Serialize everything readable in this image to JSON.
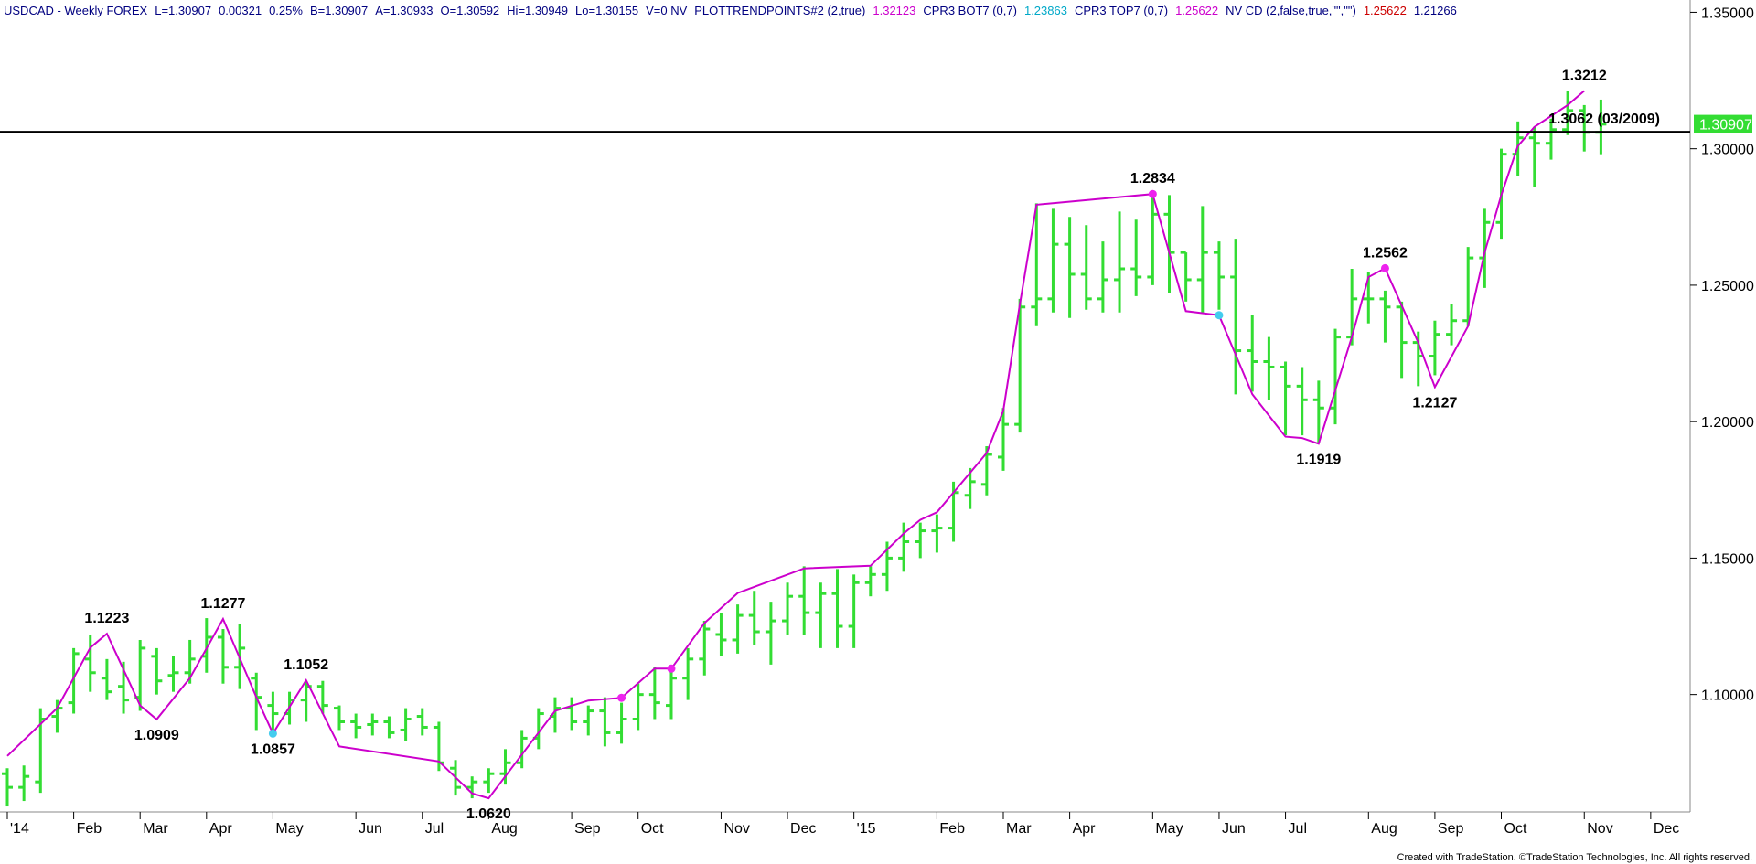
{
  "header": {
    "items": [
      {
        "text": "USDCAD - Weekly  FOREX",
        "color": "#000080"
      },
      {
        "text": "L=1.30907",
        "color": "#000080"
      },
      {
        "text": "0.00321",
        "color": "#000080"
      },
      {
        "text": "0.25%",
        "color": "#000080"
      },
      {
        "text": "B=1.30907",
        "color": "#000080"
      },
      {
        "text": "A=1.30933",
        "color": "#000080"
      },
      {
        "text": "O=1.30592",
        "color": "#000080"
      },
      {
        "text": "Hi=1.30949",
        "color": "#000080"
      },
      {
        "text": "Lo=1.30155",
        "color": "#000080"
      },
      {
        "text": "V=0  NV",
        "color": "#000080"
      },
      {
        "text": "PLOTTRENDPOINTS#2 (2,true)",
        "color": "#000080"
      },
      {
        "text": "1.32123",
        "color": "#cc00cc"
      },
      {
        "text": "CPR3 BOT7 (0,7)",
        "color": "#000080"
      },
      {
        "text": "1.23863",
        "color": "#00a8c8"
      },
      {
        "text": "CPR3 TOP7 (0,7)",
        "color": "#000080"
      },
      {
        "text": "1.25622",
        "color": "#cc00cc"
      },
      {
        "text": "NV CD (2,false,true,\"\",\"\")",
        "color": "#000080"
      },
      {
        "text": "1.25622",
        "color": "#cc0000"
      },
      {
        "text": "1.21266",
        "color": "#000080"
      }
    ]
  },
  "footer": {
    "credit": "Created with TradeStation. ©TradeStation Technologies, Inc. All rights reserved."
  },
  "chart_data": {
    "type": "ohlc",
    "symbol": "USDCAD",
    "timeframe": "Weekly",
    "ylim": [
      1.057,
      1.3545
    ],
    "y_ticks": [
      "1.35000",
      "1.30000",
      "1.25000",
      "1.20000",
      "1.15000",
      "1.10000"
    ],
    "y_tick_values": [
      1.35,
      1.3,
      1.25,
      1.2,
      1.15,
      1.1
    ],
    "x_ticks": [
      "'14",
      "Feb",
      "Mar",
      "Apr",
      "May",
      "Jun",
      "Jul",
      "Aug",
      "Sep",
      "Oct",
      "Nov",
      "Dec",
      "'15",
      "Feb",
      "Mar",
      "Apr",
      "May",
      "Jun",
      "Jul",
      "Aug",
      "Sep",
      "Oct",
      "Nov",
      "Dec"
    ],
    "x_tick_weeks": [
      0,
      4,
      8,
      12,
      16,
      21,
      25,
      29,
      34,
      38,
      43,
      47,
      51,
      56,
      60,
      64,
      69,
      73,
      77,
      82,
      86,
      90,
      95,
      99
    ],
    "last_price": "1.30907",
    "last_price_value": 1.30907,
    "bar_color": "#33dd33",
    "trend_color": "#cc00cc",
    "bars": [
      [
        1.071,
        1.073,
        1.059,
        1.066
      ],
      [
        1.066,
        1.074,
        1.061,
        1.07
      ],
      [
        1.068,
        1.095,
        1.064,
        1.091
      ],
      [
        1.092,
        1.098,
        1.086,
        1.095
      ],
      [
        1.097,
        1.117,
        1.093,
        1.115
      ],
      [
        1.113,
        1.122,
        1.101,
        1.108
      ],
      [
        1.106,
        1.113,
        1.098,
        1.101
      ],
      [
        1.103,
        1.112,
        1.093,
        1.098
      ],
      [
        1.099,
        1.12,
        1.094,
        1.117
      ],
      [
        1.114,
        1.117,
        1.1,
        1.105
      ],
      [
        1.107,
        1.114,
        1.101,
        1.108
      ],
      [
        1.108,
        1.12,
        1.104,
        1.113
      ],
      [
        1.114,
        1.128,
        1.108,
        1.121
      ],
      [
        1.121,
        1.124,
        1.104,
        1.11
      ],
      [
        1.11,
        1.126,
        1.102,
        1.117
      ],
      [
        1.106,
        1.108,
        1.087,
        1.099
      ],
      [
        1.096,
        1.101,
        1.086,
        1.093
      ],
      [
        1.093,
        1.101,
        1.089,
        1.098
      ],
      [
        1.098,
        1.105,
        1.09,
        1.103
      ],
      [
        1.103,
        1.105,
        1.093,
        1.096
      ],
      [
        1.095,
        1.096,
        1.087,
        1.09
      ],
      [
        1.09,
        1.093,
        1.084,
        1.088
      ],
      [
        1.089,
        1.093,
        1.085,
        1.09
      ],
      [
        1.09,
        1.092,
        1.084,
        1.086
      ],
      [
        1.087,
        1.095,
        1.083,
        1.091
      ],
      [
        1.092,
        1.095,
        1.085,
        1.088
      ],
      [
        1.088,
        1.09,
        1.072,
        1.075
      ],
      [
        1.073,
        1.076,
        1.063,
        1.066
      ],
      [
        1.066,
        1.07,
        1.062,
        1.068
      ],
      [
        1.068,
        1.073,
        1.064,
        1.071
      ],
      [
        1.071,
        1.08,
        1.067,
        1.075
      ],
      [
        1.075,
        1.087,
        1.073,
        1.084
      ],
      [
        1.084,
        1.095,
        1.08,
        1.093
      ],
      [
        1.092,
        1.099,
        1.086,
        1.095
      ],
      [
        1.095,
        1.099,
        1.087,
        1.09
      ],
      [
        1.09,
        1.096,
        1.085,
        1.094
      ],
      [
        1.094,
        1.099,
        1.081,
        1.086
      ],
      [
        1.086,
        1.097,
        1.082,
        1.091
      ],
      [
        1.091,
        1.104,
        1.087,
        1.1
      ],
      [
        1.1,
        1.11,
        1.091,
        1.097
      ],
      [
        1.096,
        1.11,
        1.091,
        1.106
      ],
      [
        1.106,
        1.117,
        1.098,
        1.113
      ],
      [
        1.113,
        1.127,
        1.107,
        1.124
      ],
      [
        1.122,
        1.13,
        1.114,
        1.12
      ],
      [
        1.12,
        1.133,
        1.115,
        1.129
      ],
      [
        1.129,
        1.138,
        1.118,
        1.123
      ],
      [
        1.123,
        1.134,
        1.111,
        1.127
      ],
      [
        1.127,
        1.141,
        1.122,
        1.136
      ],
      [
        1.136,
        1.147,
        1.122,
        1.13
      ],
      [
        1.13,
        1.141,
        1.117,
        1.137
      ],
      [
        1.137,
        1.146,
        1.117,
        1.125
      ],
      [
        1.125,
        1.144,
        1.117,
        1.141
      ],
      [
        1.141,
        1.147,
        1.136,
        1.144
      ],
      [
        1.144,
        1.156,
        1.138,
        1.15
      ],
      [
        1.15,
        1.163,
        1.145,
        1.156
      ],
      [
        1.156,
        1.163,
        1.15,
        1.16
      ],
      [
        1.16,
        1.166,
        1.152,
        1.161
      ],
      [
        1.161,
        1.178,
        1.156,
        1.174
      ],
      [
        1.173,
        1.183,
        1.168,
        1.178
      ],
      [
        1.177,
        1.191,
        1.173,
        1.188
      ],
      [
        1.187,
        1.205,
        1.182,
        1.199
      ],
      [
        1.199,
        1.245,
        1.196,
        1.242
      ],
      [
        1.242,
        1.28,
        1.235,
        1.245
      ],
      [
        1.245,
        1.278,
        1.24,
        1.265
      ],
      [
        1.265,
        1.275,
        1.238,
        1.254
      ],
      [
        1.254,
        1.272,
        1.241,
        1.245
      ],
      [
        1.245,
        1.266,
        1.24,
        1.252
      ],
      [
        1.252,
        1.277,
        1.24,
        1.256
      ],
      [
        1.256,
        1.274,
        1.246,
        1.253
      ],
      [
        1.253,
        1.282,
        1.25,
        1.276
      ],
      [
        1.276,
        1.283,
        1.247,
        1.262
      ],
      [
        1.262,
        1.262,
        1.244,
        1.252
      ],
      [
        1.252,
        1.279,
        1.24,
        1.262
      ],
      [
        1.262,
        1.266,
        1.241,
        1.253
      ],
      [
        1.253,
        1.267,
        1.21,
        1.226
      ],
      [
        1.226,
        1.239,
        1.211,
        1.222
      ],
      [
        1.222,
        1.231,
        1.208,
        1.22
      ],
      [
        1.22,
        1.222,
        1.195,
        1.213
      ],
      [
        1.213,
        1.22,
        1.195,
        1.208
      ],
      [
        1.208,
        1.215,
        1.192,
        1.205
      ],
      [
        1.205,
        1.234,
        1.199,
        1.231
      ],
      [
        1.231,
        1.256,
        1.228,
        1.245
      ],
      [
        1.245,
        1.255,
        1.236,
        1.245
      ],
      [
        1.245,
        1.248,
        1.229,
        1.242
      ],
      [
        1.242,
        1.244,
        1.216,
        1.229
      ],
      [
        1.229,
        1.233,
        1.213,
        1.224
      ],
      [
        1.224,
        1.237,
        1.217,
        1.232
      ],
      [
        1.232,
        1.243,
        1.228,
        1.237
      ],
      [
        1.237,
        1.264,
        1.235,
        1.26
      ],
      [
        1.26,
        1.278,
        1.249,
        1.273
      ],
      [
        1.273,
        1.3,
        1.267,
        1.298
      ],
      [
        1.298,
        1.31,
        1.29,
        1.304
      ],
      [
        1.304,
        1.308,
        1.286,
        1.302
      ],
      [
        1.302,
        1.311,
        1.296,
        1.307
      ],
      [
        1.307,
        1.321,
        1.305,
        1.314
      ],
      [
        1.314,
        1.316,
        1.299,
        1.306
      ],
      [
        1.306,
        1.318,
        1.298,
        1.309
      ]
    ],
    "swing_line": [
      [
        0,
        1.0775
      ],
      [
        3,
        1.095
      ],
      [
        5,
        1.1172
      ],
      [
        6,
        1.1223
      ],
      [
        8,
        1.096
      ],
      [
        9,
        1.0909
      ],
      [
        11,
        1.106
      ],
      [
        13,
        1.1277
      ],
      [
        15,
        1.099
      ],
      [
        16,
        1.0857
      ],
      [
        18,
        1.1052
      ],
      [
        20,
        1.081
      ],
      [
        26,
        1.0755
      ],
      [
        28,
        1.0638
      ],
      [
        29,
        1.062
      ],
      [
        31,
        1.078
      ],
      [
        33,
        1.094
      ],
      [
        35,
        1.0978
      ],
      [
        37,
        1.0988
      ],
      [
        39,
        1.1095
      ],
      [
        40,
        1.1095
      ],
      [
        42,
        1.1262
      ],
      [
        44,
        1.1372
      ],
      [
        48,
        1.1462
      ],
      [
        52,
        1.1472
      ],
      [
        54,
        1.159
      ],
      [
        55,
        1.164
      ],
      [
        56,
        1.1668
      ],
      [
        59,
        1.1885
      ],
      [
        60,
        1.204
      ],
      [
        61,
        1.243
      ],
      [
        62,
        1.2795
      ],
      [
        69,
        1.2834
      ],
      [
        71,
        1.2405
      ],
      [
        73,
        1.239
      ],
      [
        75,
        1.21
      ],
      [
        77,
        1.1945
      ],
      [
        78,
        1.194
      ],
      [
        79,
        1.1919
      ],
      [
        81,
        1.231
      ],
      [
        82,
        1.253
      ],
      [
        83,
        1.2562
      ],
      [
        85,
        1.229
      ],
      [
        86,
        1.2127
      ],
      [
        88,
        1.235
      ],
      [
        89,
        1.262
      ],
      [
        90,
        1.283
      ],
      [
        91,
        1.301
      ],
      [
        92,
        1.308
      ],
      [
        94,
        1.316
      ],
      [
        95,
        1.3212
      ]
    ],
    "pivot_labels": [
      {
        "text": "1.1223",
        "week": 6,
        "value": 1.1223,
        "pos": "above"
      },
      {
        "text": "1.0909",
        "week": 9,
        "value": 1.0909,
        "pos": "below"
      },
      {
        "text": "1.1277",
        "week": 13,
        "value": 1.1277,
        "pos": "above"
      },
      {
        "text": "1.0857",
        "week": 16,
        "value": 1.0857,
        "pos": "below"
      },
      {
        "text": "1.1052",
        "week": 18,
        "value": 1.1052,
        "pos": "above"
      },
      {
        "text": "1.0620",
        "week": 29,
        "value": 1.062,
        "pos": "below"
      },
      {
        "text": "1.2834",
        "week": 69,
        "value": 1.2834,
        "pos": "above"
      },
      {
        "text": "1.1919",
        "week": 79,
        "value": 1.1919,
        "pos": "below"
      },
      {
        "text": "1.2562",
        "week": 83,
        "value": 1.2562,
        "pos": "above"
      },
      {
        "text": "1.2127",
        "week": 86,
        "value": 1.2127,
        "pos": "below"
      },
      {
        "text": "1.3212",
        "week": 95,
        "value": 1.3212,
        "pos": "above"
      }
    ],
    "markers": [
      {
        "week": 16,
        "value": 1.0857,
        "color": "#44ccee"
      },
      {
        "week": 37,
        "value": 1.0988,
        "color": "#ee22ee"
      },
      {
        "week": 40,
        "value": 1.1095,
        "color": "#ee22ee"
      },
      {
        "week": 69,
        "value": 1.2834,
        "color": "#ee22ee"
      },
      {
        "week": 73,
        "value": 1.239,
        "color": "#44ccee"
      },
      {
        "week": 83,
        "value": 1.2562,
        "color": "#ee22ee"
      }
    ],
    "hline": {
      "value": 1.3062,
      "label": "1.3062 (03/2009)",
      "color": "#000000"
    }
  }
}
